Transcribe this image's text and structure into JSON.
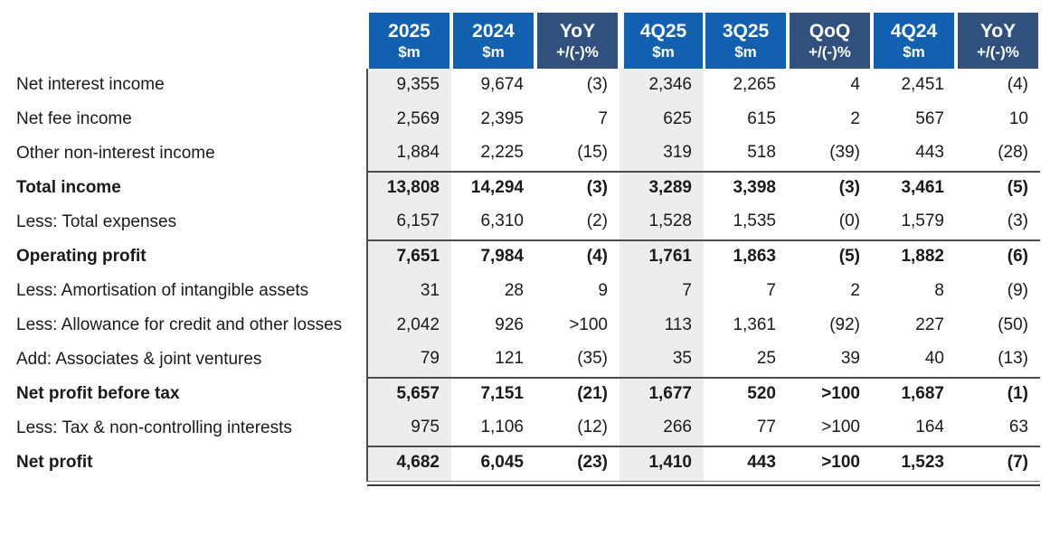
{
  "colors": {
    "blue": "#1161b0",
    "navy": "#30517e",
    "shade": "#ededed",
    "rule": "#4d4d4d",
    "rule-light": "#7d7d7d",
    "rule-dark": "#3c3c3c",
    "text": "#1a1a1a"
  },
  "table": {
    "columns": [
      {
        "line1": "2025",
        "line2": "$m",
        "variant": "blue",
        "shaded": true,
        "group_start": false
      },
      {
        "line1": "2024",
        "line2": "$m",
        "variant": "blue",
        "shaded": false,
        "group_start": false
      },
      {
        "line1": "YoY",
        "line2": "+/(-)%",
        "variant": "navy",
        "shaded": false,
        "group_start": false
      },
      {
        "line1": "4Q25",
        "line2": "$m",
        "variant": "blue",
        "shaded": true,
        "group_start": true
      },
      {
        "line1": "3Q25",
        "line2": "$m",
        "variant": "blue",
        "shaded": false,
        "group_start": false
      },
      {
        "line1": "QoQ",
        "line2": "+/(-)%",
        "variant": "navy",
        "shaded": false,
        "group_start": false
      },
      {
        "line1": "4Q24",
        "line2": "$m",
        "variant": "blue",
        "shaded": false,
        "group_start": false
      },
      {
        "line1": "YoY",
        "line2": "+/(-)%",
        "variant": "navy",
        "shaded": false,
        "group_start": false
      }
    ],
    "rows": [
      {
        "label": "Net interest income",
        "values": [
          "9,355",
          "9,674",
          "(3)",
          "2,346",
          "2,265",
          "4",
          "2,451",
          "(4)"
        ],
        "bold": false,
        "rule_above": false,
        "double_rule_below": false
      },
      {
        "label": "Net fee income",
        "values": [
          "2,569",
          "2,395",
          "7",
          "625",
          "615",
          "2",
          "567",
          "10"
        ],
        "bold": false,
        "rule_above": false,
        "double_rule_below": false
      },
      {
        "label": "Other non-interest income",
        "values": [
          "1,884",
          "2,225",
          "(15)",
          "319",
          "518",
          "(39)",
          "443",
          "(28)"
        ],
        "bold": false,
        "rule_above": false,
        "double_rule_below": false
      },
      {
        "label": "Total income",
        "values": [
          "13,808",
          "14,294",
          "(3)",
          "3,289",
          "3,398",
          "(3)",
          "3,461",
          "(5)"
        ],
        "bold": true,
        "rule_above": true,
        "double_rule_below": false
      },
      {
        "label": "Less: Total expenses",
        "values": [
          "6,157",
          "6,310",
          "(2)",
          "1,528",
          "1,535",
          "(0)",
          "1,579",
          "(3)"
        ],
        "bold": false,
        "rule_above": false,
        "double_rule_below": false
      },
      {
        "label": "Operating profit",
        "values": [
          "7,651",
          "7,984",
          "(4)",
          "1,761",
          "1,863",
          "(5)",
          "1,882",
          "(6)"
        ],
        "bold": true,
        "rule_above": true,
        "double_rule_below": false
      },
      {
        "label": "Less: Amortisation of intangible assets",
        "values": [
          "31",
          "28",
          "9",
          "7",
          "7",
          "2",
          "8",
          "(9)"
        ],
        "bold": false,
        "rule_above": false,
        "double_rule_below": false
      },
      {
        "label": "Less: Allowance for credit and other losses",
        "values": [
          "2,042",
          "926",
          ">100",
          "113",
          "1,361",
          "(92)",
          "227",
          "(50)"
        ],
        "bold": false,
        "rule_above": false,
        "double_rule_below": false
      },
      {
        "label": "Add: Associates & joint ventures",
        "values": [
          "79",
          "121",
          "(35)",
          "35",
          "25",
          "39",
          "40",
          "(13)"
        ],
        "bold": false,
        "rule_above": false,
        "double_rule_below": false
      },
      {
        "label": "Net profit before tax",
        "values": [
          "5,657",
          "7,151",
          "(21)",
          "1,677",
          "520",
          ">100",
          "1,687",
          "(1)"
        ],
        "bold": true,
        "rule_above": true,
        "double_rule_below": false
      },
      {
        "label": "Less: Tax & non-controlling interests",
        "values": [
          "975",
          "1,106",
          "(12)",
          "266",
          "77",
          ">100",
          "164",
          "63"
        ],
        "bold": false,
        "rule_above": false,
        "double_rule_below": false
      },
      {
        "label": "Net profit",
        "values": [
          "4,682",
          "6,045",
          "(23)",
          "1,410",
          "443",
          ">100",
          "1,523",
          "(7)"
        ],
        "bold": true,
        "rule_above": true,
        "double_rule_below": true
      }
    ]
  }
}
